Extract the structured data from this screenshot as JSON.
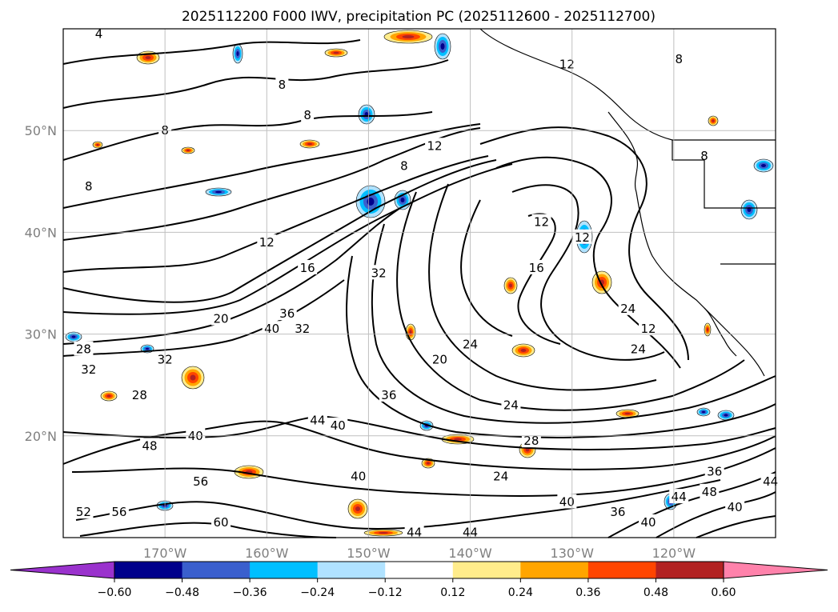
{
  "title": "2025112200 F000 IWV, precipitation PC (2025112600 - 2025112700)",
  "map": {
    "lat_ticks": [
      "50°N",
      "40°N",
      "30°N",
      "20°N"
    ],
    "lon_ticks": [
      "170°W",
      "160°W",
      "150°W",
      "140°W",
      "130°W",
      "120°W"
    ],
    "lat_range": [
      10,
      60
    ],
    "lon_range": [
      -180,
      -110
    ],
    "colors": {
      "coast": "#000000",
      "grid": "#b0b0b0",
      "contour": "#000000"
    },
    "contour_labels": [
      {
        "v": "4",
        "lon": -176.5,
        "lat": 59.5
      },
      {
        "v": "8",
        "lon": -158.5,
        "lat": 54.5
      },
      {
        "v": "8",
        "lon": -156,
        "lat": 51.5
      },
      {
        "v": "8",
        "lon": -170,
        "lat": 50
      },
      {
        "v": "8",
        "lon": -177.5,
        "lat": 44.5
      },
      {
        "v": "8",
        "lon": -146.5,
        "lat": 46.5
      },
      {
        "v": "12",
        "lon": -143.5,
        "lat": 48.5
      },
      {
        "v": "12",
        "lon": -130.5,
        "lat": 56.5
      },
      {
        "v": "8",
        "lon": -119.5,
        "lat": 57
      },
      {
        "v": "8",
        "lon": -117,
        "lat": 47.5
      },
      {
        "v": "12",
        "lon": -160,
        "lat": 39
      },
      {
        "v": "16",
        "lon": -156,
        "lat": 36.5
      },
      {
        "v": "20",
        "lon": -164.5,
        "lat": 31.5
      },
      {
        "v": "32",
        "lon": -149,
        "lat": 36
      },
      {
        "v": "36",
        "lon": -158,
        "lat": 32
      },
      {
        "v": "40",
        "lon": -159.5,
        "lat": 30.5
      },
      {
        "v": "32",
        "lon": -156.5,
        "lat": 30.5
      },
      {
        "v": "12",
        "lon": -133,
        "lat": 41
      },
      {
        "v": "12",
        "lon": -129,
        "lat": 39.5
      },
      {
        "v": "16",
        "lon": -133.5,
        "lat": 36.5
      },
      {
        "v": "12",
        "lon": -122.5,
        "lat": 30.5
      },
      {
        "v": "24",
        "lon": -140,
        "lat": 29
      },
      {
        "v": "20",
        "lon": -143,
        "lat": 27.5
      },
      {
        "v": "36",
        "lon": -148,
        "lat": 24
      },
      {
        "v": "24",
        "lon": -123.5,
        "lat": 28.5
      },
      {
        "v": "24",
        "lon": -124.5,
        "lat": 32.5
      },
      {
        "v": "32",
        "lon": -170,
        "lat": 27.5
      },
      {
        "v": "32",
        "lon": -177.5,
        "lat": 26.5
      },
      {
        "v": "28",
        "lon": -178,
        "lat": 28.5
      },
      {
        "v": "28",
        "lon": -172.5,
        "lat": 24
      },
      {
        "v": "24",
        "lon": -136,
        "lat": 23
      },
      {
        "v": "28",
        "lon": -134,
        "lat": 19.5
      },
      {
        "v": "24",
        "lon": -137,
        "lat": 16
      },
      {
        "v": "40",
        "lon": -167,
        "lat": 20
      },
      {
        "v": "48",
        "lon": -171.5,
        "lat": 19
      },
      {
        "v": "44",
        "lon": -155,
        "lat": 21.5
      },
      {
        "v": "40",
        "lon": -153,
        "lat": 21
      },
      {
        "v": "40",
        "lon": -151,
        "lat": 16
      },
      {
        "v": "56",
        "lon": -166.5,
        "lat": 15.5
      },
      {
        "v": "56",
        "lon": -174.5,
        "lat": 12.5
      },
      {
        "v": "52",
        "lon": -178,
        "lat": 12.5
      },
      {
        "v": "60",
        "lon": -164.5,
        "lat": 11.5
      },
      {
        "v": "40",
        "lon": -130.5,
        "lat": 13.5
      },
      {
        "v": "36",
        "lon": -125.5,
        "lat": 12.5
      },
      {
        "v": "40",
        "lon": -122.5,
        "lat": 11.5
      },
      {
        "v": "44",
        "lon": -119.5,
        "lat": 14
      },
      {
        "v": "48",
        "lon": -116.5,
        "lat": 14.5
      },
      {
        "v": "40",
        "lon": -114,
        "lat": 13
      },
      {
        "v": "36",
        "lon": -116,
        "lat": 16.5
      },
      {
        "v": "44",
        "lon": -110.5,
        "lat": 15.5
      },
      {
        "v": "44",
        "lon": -145.5,
        "lat": 10.5
      },
      {
        "v": "44",
        "lon": -140,
        "lat": 10.5
      }
    ]
  },
  "colorbar": {
    "ticks": [
      "−0.60",
      "−0.48",
      "−0.36",
      "−0.24",
      "−0.12",
      "0.12",
      "0.24",
      "0.36",
      "0.48",
      "0.60"
    ],
    "colors": [
      "#9a32cd",
      "#00008b",
      "#3a5fcd",
      "#00bfff",
      "#b0e2ff",
      "#ffffff",
      "#ffec8b",
      "#ffa500",
      "#ff4500",
      "#b22222",
      "#ff82ab"
    ]
  }
}
